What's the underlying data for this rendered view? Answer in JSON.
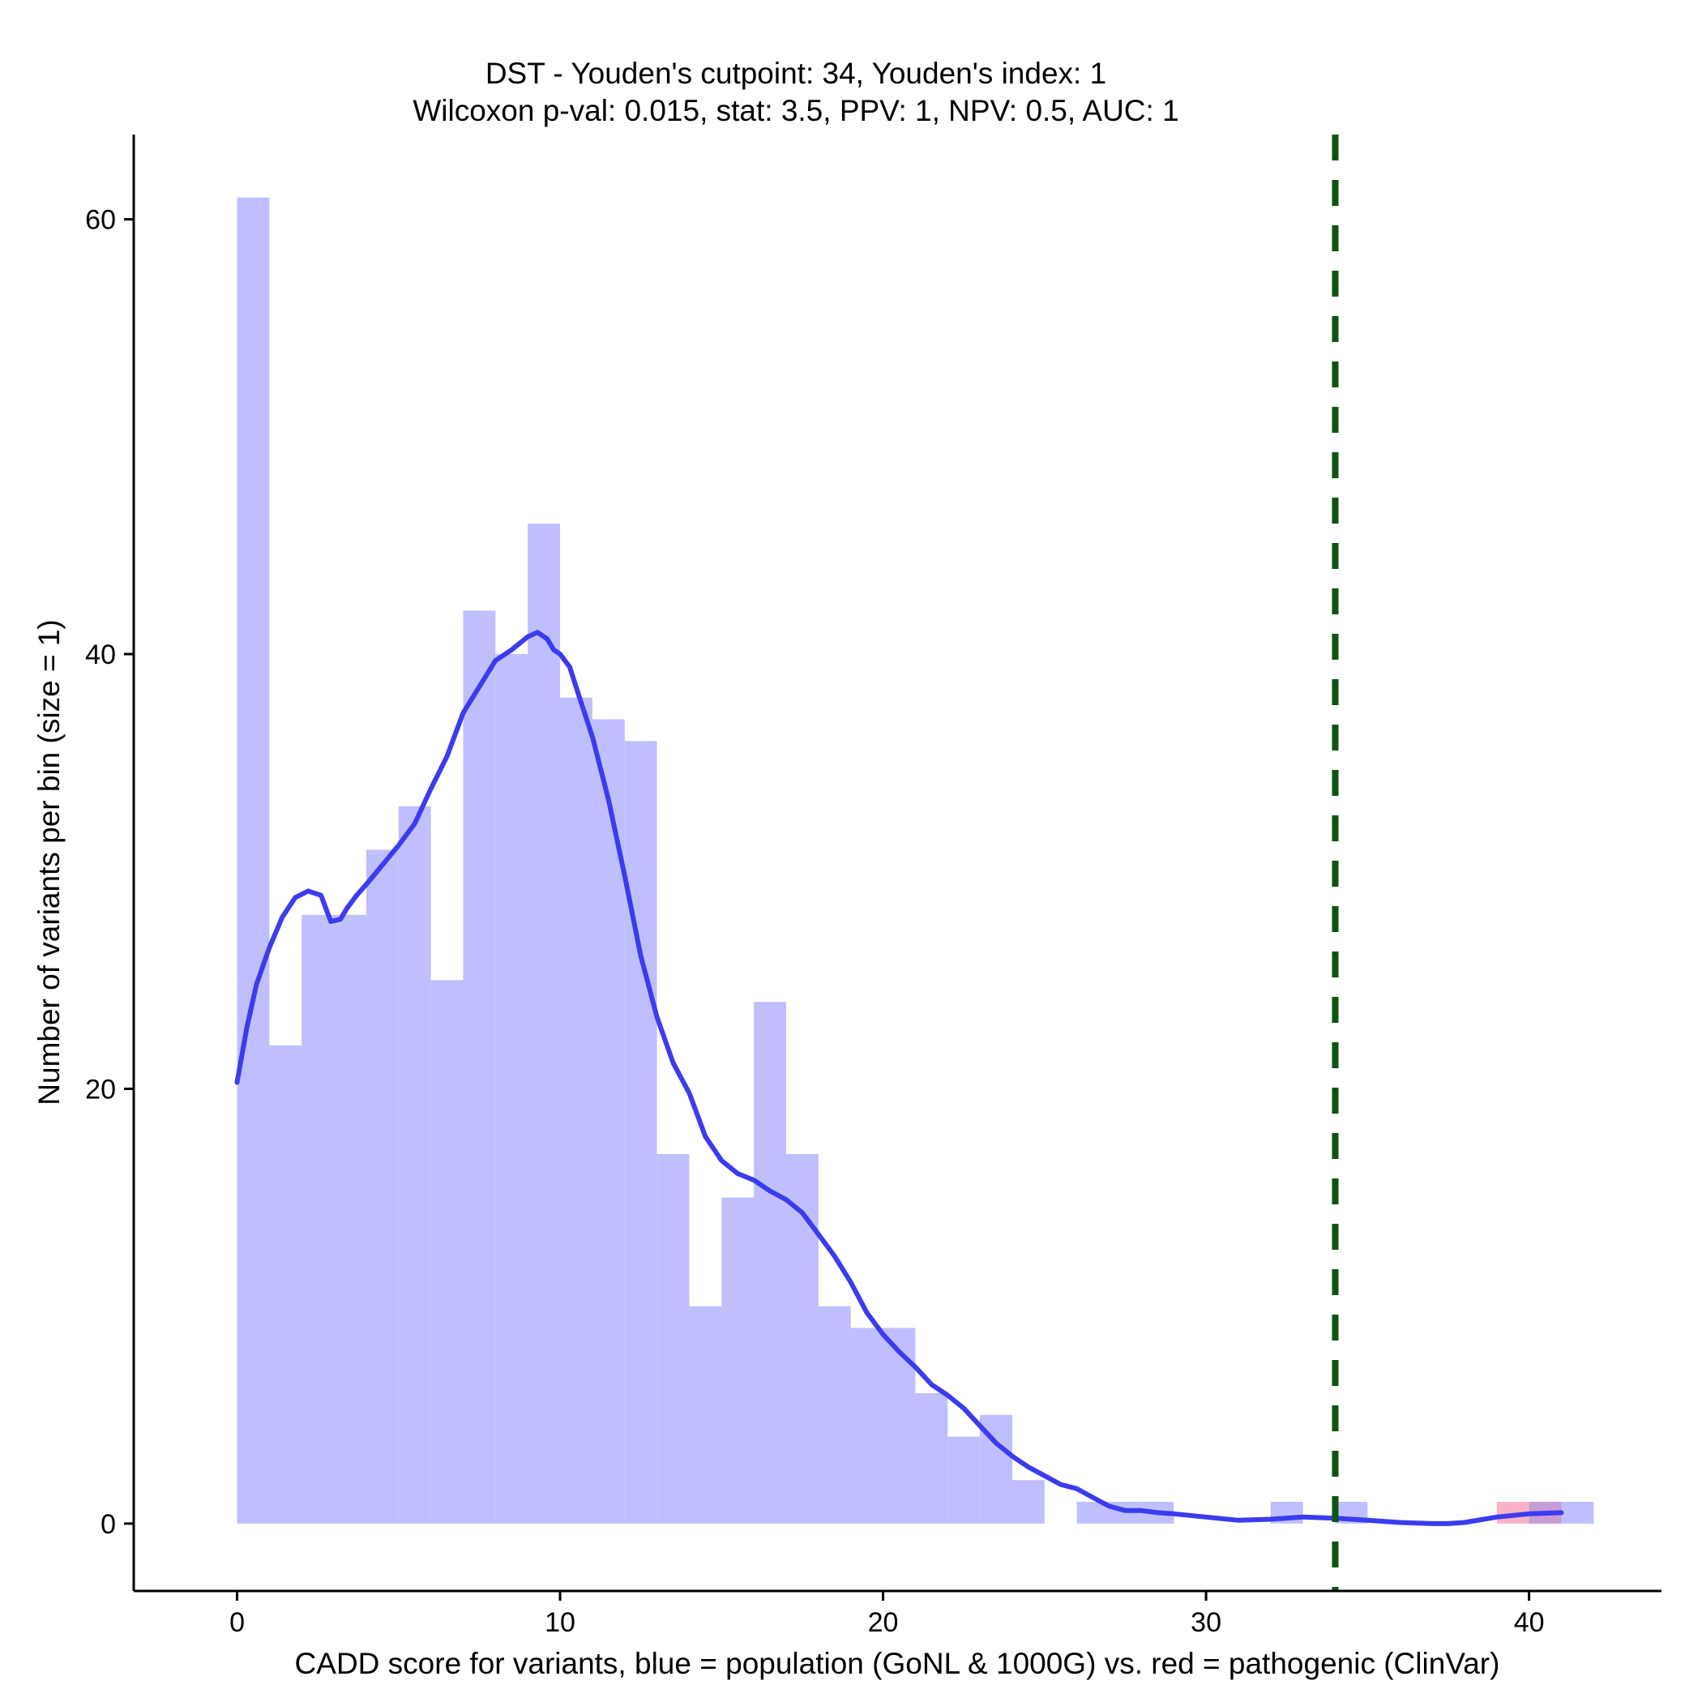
{
  "chart_data": {
    "type": "bar",
    "title": "DST - Youden's cutpoint: 34, Youden's index: 1",
    "subtitle": "Wilcoxon p-val: 0.015, stat: 3.5, PPV: 1, NPV: 0.5, AUC: 1",
    "xlabel": "CADD score for variants, blue = population (GoNL & 1000G) vs. red = pathogenic (ClinVar)",
    "ylabel": "Number of variants per bin (size = 1)",
    "xlim": [
      -3.2,
      44.1
    ],
    "ylim": [
      -3.1,
      63.9
    ],
    "xticks": [
      0,
      10,
      20,
      30,
      40
    ],
    "yticks": [
      0,
      20,
      40,
      60
    ],
    "bin_width": 1,
    "cutpoint": 34,
    "colors": {
      "population": "#bfbffd",
      "pathogenic": "#f7b3c4",
      "overlap": "#c79dd6",
      "density": "#3b3bf0",
      "cutpoint": "#0e5410"
    },
    "series": [
      {
        "name": "population",
        "bin_starts": [
          0,
          1,
          2,
          3,
          4,
          5,
          6,
          7,
          8,
          9,
          10,
          11,
          12,
          13,
          14,
          15,
          16,
          17,
          18,
          19,
          20,
          21,
          22,
          23,
          24,
          25,
          26,
          27,
          28,
          29,
          30,
          31,
          32,
          33,
          34,
          35,
          36,
          37,
          38,
          39,
          40,
          41
        ],
        "values": [
          61,
          22,
          28,
          28,
          31,
          33,
          25,
          42,
          40,
          46,
          38,
          37,
          36,
          17,
          10,
          15,
          24,
          17,
          10,
          9,
          9,
          6,
          4,
          5,
          2,
          0,
          1,
          1,
          1,
          0,
          0,
          0,
          1,
          0,
          1,
          0,
          0,
          0,
          0,
          0,
          1,
          1
        ]
      },
      {
        "name": "pathogenic",
        "bin_starts": [
          39,
          40
        ],
        "values": [
          1,
          1
        ]
      }
    ],
    "density_curve": {
      "x": [
        0,
        0.3,
        0.6,
        1,
        1.4,
        1.8,
        2.2,
        2.6,
        2.9,
        3.2,
        3.4,
        3.7,
        4,
        4.5,
        5,
        5.5,
        6,
        6.5,
        7,
        7.5,
        8,
        8.5,
        9,
        9.3,
        9.6,
        9.8,
        10,
        10.3,
        10.6,
        11,
        11.5,
        12,
        12.5,
        13,
        13.5,
        14,
        14.5,
        15,
        15.5,
        16,
        16.5,
        17,
        17.5,
        18,
        18.5,
        19,
        19.5,
        20,
        20.5,
        21,
        21.5,
        22,
        22.5,
        23,
        23.5,
        24,
        24.5,
        25,
        25.5,
        26,
        26.5,
        27,
        27.5,
        28,
        28.5,
        29,
        30,
        31,
        32,
        33,
        34,
        35,
        36,
        37,
        37.5,
        38,
        39,
        40,
        41
      ],
      "y": [
        20.3,
        22.8,
        24.8,
        26.5,
        27.9,
        28.8,
        29.1,
        28.9,
        27.7,
        27.8,
        28.3,
        28.9,
        29.4,
        30.3,
        31.2,
        32.2,
        33.8,
        35.3,
        37.3,
        38.5,
        39.7,
        40.2,
        40.8,
        41,
        40.7,
        40.2,
        40,
        39.4,
        38,
        36.2,
        33.3,
        29.8,
        26.1,
        23.3,
        21.2,
        19.8,
        17.8,
        16.7,
        16.1,
        15.8,
        15.3,
        14.9,
        14.3,
        13.3,
        12.3,
        11.1,
        9.7,
        8.7,
        7.9,
        7.2,
        6.4,
        5.9,
        5.3,
        4.5,
        3.7,
        3.1,
        2.6,
        2.2,
        1.8,
        1.6,
        1.2,
        0.8,
        0.6,
        0.6,
        0.5,
        0.45,
        0.3,
        0.15,
        0.2,
        0.3,
        0.25,
        0.15,
        0.05,
        0,
        0,
        0.05,
        0.3,
        0.45,
        0.5
      ]
    }
  }
}
